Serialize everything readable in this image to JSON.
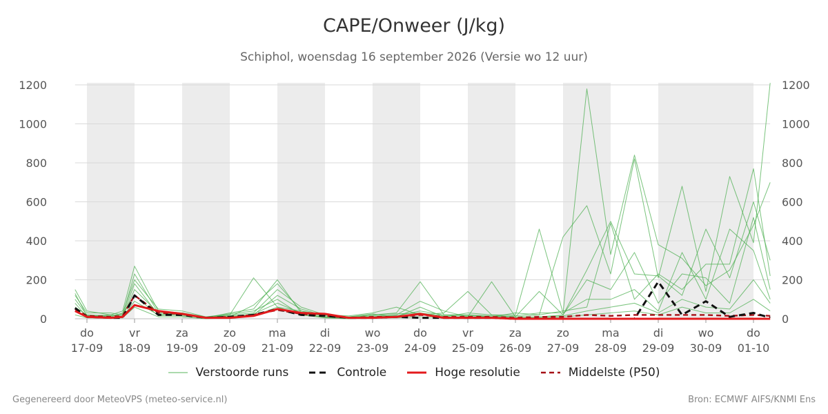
{
  "header": {
    "title": "CAPE/Onweer (J/kg)",
    "subtitle": "Schiphol, woensdag 16 september 2026 (Versie wo 12 uur)"
  },
  "footer": {
    "left": "Gegenereerd door MeteoVPS (meteo-service.nl)",
    "right": "Bron: ECMWF AIFS/KNMI Ens"
  },
  "colors": {
    "ensemble": "#4caf50",
    "control": "#111111",
    "high_res": "#e31a1c",
    "median": "#a50f15",
    "shade": "#ececec",
    "grid": "#d9d9d9"
  },
  "chart_data": {
    "type": "line",
    "title": "CAPE/Onweer (J/kg)",
    "ylim": [
      0,
      1200
    ],
    "yticks": [
      0,
      200,
      400,
      600,
      800,
      1000,
      1200
    ],
    "xlim": [
      -0.25,
      14.35
    ],
    "grid": true,
    "legend_position": "bottom",
    "shaded_days": [
      1,
      3,
      5,
      7,
      9,
      11,
      13,
      14
    ],
    "xticks": [
      {
        "day": "do",
        "date": "17-09"
      },
      {
        "day": "vr",
        "date": "18-09"
      },
      {
        "day": "za",
        "date": "19-09"
      },
      {
        "day": "zo",
        "date": "20-09"
      },
      {
        "day": "ma",
        "date": "21-09"
      },
      {
        "day": "di",
        "date": "22-09"
      },
      {
        "day": "wo",
        "date": "23-09"
      },
      {
        "day": "do",
        "date": "24-09"
      },
      {
        "day": "vr",
        "date": "25-09"
      },
      {
        "day": "za",
        "date": "26-09"
      },
      {
        "day": "zo",
        "date": "27-09"
      },
      {
        "day": "ma",
        "date": "28-09"
      },
      {
        "day": "di",
        "date": "29-09"
      },
      {
        "day": "wo",
        "date": "30-09"
      },
      {
        "day": "do",
        "date": "01-10"
      }
    ],
    "series": [
      {
        "name": "Verstoorde runs",
        "style": "ensemble",
        "x": [
          -0.25,
          0,
          0.5,
          0.75,
          1,
          1.5,
          2,
          2.5,
          3,
          3.5,
          4,
          4.5,
          5,
          5.5,
          6,
          6.5,
          7,
          7.5,
          8,
          8.5,
          9,
          9.5,
          10,
          10.5,
          11,
          11.5,
          12,
          12.5,
          13,
          13.5,
          14,
          14.35
        ],
        "y": [
          150,
          40,
          20,
          40,
          270,
          40,
          30,
          10,
          20,
          210,
          60,
          40,
          20,
          15,
          30,
          60,
          20,
          30,
          140,
          20,
          20,
          460,
          30,
          1180,
          330,
          840,
          380,
          310,
          170,
          250,
          480,
          700
        ]
      },
      {
        "name": "",
        "style": "ensemble",
        "x": [
          -0.25,
          0,
          0.5,
          0.75,
          1,
          1.5,
          2,
          2.5,
          3,
          3.5,
          4,
          4.5,
          5,
          5.5,
          6,
          6.5,
          7,
          7.5,
          8,
          8.5,
          9,
          9.5,
          10,
          10.5,
          11,
          11.5,
          12,
          12.5,
          13,
          13.5,
          14,
          14.35
        ],
        "y": [
          120,
          30,
          30,
          20,
          230,
          30,
          20,
          5,
          30,
          50,
          200,
          30,
          15,
          10,
          20,
          30,
          190,
          20,
          20,
          10,
          30,
          20,
          420,
          580,
          230,
          820,
          210,
          680,
          140,
          730,
          390,
          1210
        ]
      },
      {
        "name": "",
        "style": "ensemble",
        "x": [
          -0.25,
          0,
          0.5,
          0.75,
          1,
          1.5,
          2,
          2.5,
          3,
          3.5,
          4,
          4.5,
          5,
          5.5,
          6,
          6.5,
          7,
          7.5,
          8,
          8.5,
          9,
          9.5,
          10,
          10.5,
          11,
          11.5,
          12,
          12.5,
          13,
          13.5,
          14,
          14.35
        ],
        "y": [
          100,
          20,
          10,
          30,
          200,
          50,
          40,
          10,
          10,
          70,
          180,
          40,
          10,
          5,
          10,
          20,
          90,
          40,
          10,
          190,
          10,
          140,
          20,
          250,
          500,
          230,
          220,
          120,
          460,
          210,
          600,
          300
        ]
      },
      {
        "name": "",
        "style": "ensemble",
        "x": [
          -0.25,
          0,
          0.5,
          0.75,
          1,
          1.5,
          2,
          2.5,
          3,
          3.5,
          4,
          4.5,
          5,
          5.5,
          6,
          6.5,
          7,
          7.5,
          8,
          8.5,
          9,
          9.5,
          10,
          10.5,
          11,
          11.5,
          12,
          12.5,
          13,
          13.5,
          14,
          14.35
        ],
        "y": [
          130,
          15,
          20,
          15,
          180,
          20,
          30,
          5,
          20,
          30,
          150,
          60,
          20,
          10,
          25,
          10,
          60,
          10,
          30,
          20,
          10,
          20,
          40,
          60,
          490,
          100,
          230,
          150,
          280,
          280,
          770,
          220
        ]
      },
      {
        "name": "",
        "style": "ensemble",
        "x": [
          -0.25,
          0,
          0.5,
          0.75,
          1,
          1.5,
          2,
          2.5,
          3,
          3.5,
          4,
          4.5,
          5,
          5.5,
          6,
          6.5,
          7,
          7.5,
          8,
          8.5,
          9,
          9.5,
          10,
          10.5,
          11,
          11.5,
          12,
          12.5,
          13,
          13.5,
          14,
          14.35
        ],
        "y": [
          80,
          10,
          5,
          10,
          150,
          30,
          20,
          5,
          15,
          20,
          120,
          50,
          15,
          5,
          15,
          15,
          40,
          20,
          20,
          15,
          5,
          10,
          20,
          200,
          150,
          340,
          80,
          230,
          210,
          80,
          520,
          150
        ]
      },
      {
        "name": "",
        "style": "ensemble",
        "x": [
          -0.25,
          0,
          0.5,
          0.75,
          1,
          1.5,
          2,
          2.5,
          3,
          3.5,
          4,
          4.5,
          5,
          5.5,
          6,
          6.5,
          7,
          7.5,
          8,
          8.5,
          9,
          9.5,
          10,
          10.5,
          11,
          11.5,
          12,
          12.5,
          13,
          13.5,
          14,
          14.35
        ],
        "y": [
          60,
          20,
          15,
          25,
          120,
          15,
          25,
          10,
          25,
          40,
          100,
          20,
          10,
          5,
          20,
          25,
          30,
          15,
          15,
          10,
          15,
          30,
          30,
          100,
          100,
          150,
          40,
          340,
          100,
          460,
          350,
          100
        ]
      },
      {
        "name": "",
        "style": "ensemble",
        "x": [
          -0.25,
          0,
          0.5,
          0.75,
          1,
          1.5,
          2,
          2.5,
          3,
          3.5,
          4,
          4.5,
          5,
          5.5,
          6,
          6.5,
          7,
          7.5,
          8,
          8.5,
          9,
          9.5,
          10,
          10.5,
          11,
          11.5,
          12,
          12.5,
          13,
          13.5,
          14,
          14.35
        ],
        "y": [
          40,
          10,
          10,
          10,
          90,
          20,
          15,
          5,
          10,
          25,
          80,
          30,
          5,
          5,
          10,
          10,
          20,
          10,
          10,
          5,
          5,
          10,
          15,
          40,
          60,
          80,
          30,
          100,
          60,
          50,
          200,
          80
        ]
      },
      {
        "name": "",
        "style": "ensemble",
        "x": [
          -0.25,
          0,
          0.5,
          0.75,
          1,
          1.5,
          2,
          2.5,
          3,
          3.5,
          4,
          4.5,
          5,
          5.5,
          6,
          6.5,
          7,
          7.5,
          8,
          8.5,
          9,
          9.5,
          10,
          10.5,
          11,
          11.5,
          12,
          12.5,
          13,
          13.5,
          14,
          14.35
        ],
        "y": [
          20,
          5,
          5,
          5,
          60,
          10,
          10,
          0,
          5,
          15,
          60,
          20,
          5,
          0,
          5,
          5,
          10,
          5,
          5,
          5,
          0,
          5,
          10,
          20,
          30,
          40,
          20,
          60,
          30,
          30,
          100,
          40
        ]
      },
      {
        "name": "Controle",
        "style": "control",
        "x": [
          -0.25,
          0,
          0.5,
          0.75,
          1,
          1.5,
          2,
          2.5,
          3,
          3.5,
          4,
          4.5,
          5,
          5.5,
          6,
          6.5,
          7,
          7.5,
          8,
          8.5,
          9,
          9.5,
          10,
          10.5,
          11,
          11.5,
          12,
          12.5,
          13,
          13.5,
          14,
          14.35
        ],
        "y": [
          55,
          10,
          5,
          5,
          120,
          20,
          20,
          5,
          10,
          20,
          50,
          20,
          15,
          5,
          5,
          10,
          5,
          5,
          5,
          5,
          0,
          0,
          0,
          0,
          0,
          0,
          190,
          20,
          90,
          10,
          30,
          5
        ]
      },
      {
        "name": "Hoge resolutie",
        "style": "high_res",
        "x": [
          -0.25,
          0,
          0.5,
          0.75,
          1,
          1.5,
          2,
          2.5,
          3,
          3.5,
          4,
          4.5,
          5,
          5.5,
          6,
          6.5,
          7,
          7.5,
          8,
          8.5,
          9,
          9.5,
          10,
          10.5,
          11,
          11.5,
          12,
          12.5,
          13,
          13.5,
          14,
          14.35
        ],
        "y": [
          40,
          10,
          5,
          10,
          70,
          40,
          25,
          5,
          5,
          15,
          50,
          30,
          25,
          5,
          5,
          10,
          25,
          5,
          5,
          5,
          0,
          0,
          0,
          0,
          0,
          0,
          0,
          0,
          0,
          0,
          0,
          0
        ]
      },
      {
        "name": "Middelste (P50)",
        "style": "median",
        "x": [
          -0.25,
          0,
          0.5,
          0.75,
          1,
          1.5,
          2,
          2.5,
          3,
          3.5,
          4,
          4.5,
          5,
          5.5,
          6,
          6.5,
          7,
          7.5,
          8,
          8.5,
          9,
          9.5,
          10,
          10.5,
          11,
          11.5,
          12,
          12.5,
          13,
          13.5,
          14,
          14.35
        ],
        "y": [
          50,
          15,
          10,
          15,
          120,
          30,
          25,
          5,
          10,
          20,
          45,
          25,
          15,
          5,
          10,
          10,
          20,
          10,
          10,
          10,
          5,
          10,
          10,
          20,
          15,
          20,
          20,
          20,
          20,
          15,
          20,
          15
        ]
      }
    ]
  },
  "legend": [
    {
      "label": "Verstoorde runs",
      "style": "ensemble"
    },
    {
      "label": "Controle",
      "style": "control"
    },
    {
      "label": "Hoge resolutie",
      "style": "high_res"
    },
    {
      "label": "Middelste (P50)",
      "style": "median"
    }
  ]
}
